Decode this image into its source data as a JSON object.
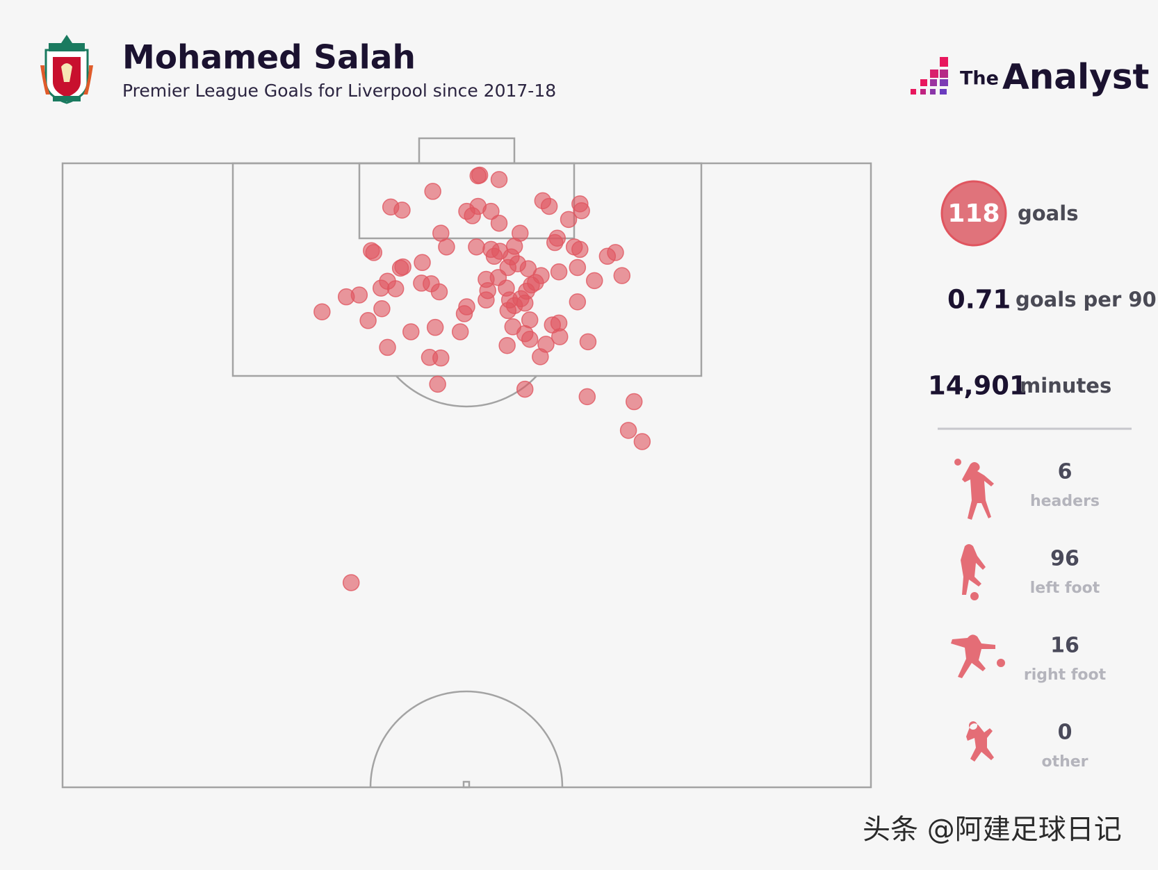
{
  "chart_data": {
    "type": "scatter",
    "title": "Mohamed Salah",
    "subtitle": "Premier League Goals for Liverpool since 2017-18",
    "color": "#e0555f",
    "xlim": [
      0,
      100
    ],
    "ylim": [
      100,
      0
    ],
    "x": [
      51.6,
      51.4,
      54.0,
      45.8,
      40.6,
      42.0,
      50.0,
      51.4,
      50.7,
      53.0,
      54.0,
      59.4,
      60.2,
      64.0,
      64.2,
      62.6,
      46.8,
      56.6,
      47.5,
      51.2,
      53.0,
      54.1,
      55.9,
      61.2,
      60.9,
      63.3,
      64.0,
      38.2,
      38.5,
      44.5,
      41.8,
      42.1,
      53.4,
      55.5,
      56.3,
      55.1,
      57.6,
      59.2,
      61.4,
      63.7,
      67.4,
      68.4,
      69.2,
      65.8,
      52.4,
      53.9,
      54.9,
      52.6,
      58.0,
      58.5,
      57.4,
      40.2,
      39.4,
      41.2,
      44.4,
      45.6,
      46.6,
      35.1,
      36.7,
      32.1,
      39.5,
      37.8,
      50.0,
      49.7,
      52.4,
      55.3,
      56.7,
      55.9,
      57.2,
      55.1,
      63.7,
      57.8,
      55.7,
      60.6,
      61.4,
      43.1,
      46.1,
      49.2,
      57.2,
      57.8,
      61.5,
      59.8,
      55.0,
      65.0,
      40.2,
      45.4,
      46.8,
      59.1,
      46.4,
      57.2,
      64.9,
      70.7,
      70.0,
      71.7,
      35.7
    ],
    "values": [
      1.9,
      2.0,
      2.6,
      4.5,
      7.0,
      7.5,
      7.7,
      6.9,
      8.4,
      7.7,
      9.6,
      6.0,
      6.9,
      6.5,
      7.6,
      9.0,
      11.2,
      11.2,
      13.4,
      13.4,
      13.8,
      14.1,
      13.3,
      12.0,
      12.7,
      13.4,
      13.8,
      14.0,
      14.3,
      15.9,
      16.8,
      16.6,
      14.9,
      15.0,
      16.1,
      16.7,
      16.9,
      18.0,
      17.4,
      16.7,
      14.9,
      14.3,
      18.0,
      18.8,
      18.6,
      18.3,
      20.0,
      20.4,
      19.5,
      19.1,
      20.5,
      18.9,
      20.0,
      20.1,
      19.2,
      19.3,
      20.6,
      21.4,
      21.1,
      23.8,
      23.3,
      25.2,
      23.0,
      24.1,
      21.9,
      21.9,
      21.7,
      22.8,
      22.4,
      23.6,
      22.2,
      25.1,
      26.2,
      25.9,
      25.6,
      27.0,
      26.3,
      27.0,
      27.3,
      28.2,
      27.8,
      29.0,
      29.2,
      28.6,
      29.5,
      31.1,
      31.2,
      31.0,
      35.4,
      36.2,
      37.4,
      38.2,
      42.8,
      44.6,
      67.2
    ]
  },
  "brand": {
    "prefix": "The",
    "name": "Analyst"
  },
  "summary": {
    "goals": 118,
    "goals_label": "goals",
    "per90": 0.71,
    "per90_label": "goals per 90",
    "minutes": "14,901",
    "minutes_label": "minutes"
  },
  "breakdown": [
    {
      "value": 6,
      "label": "headers"
    },
    {
      "value": 96,
      "label": "left foot"
    },
    {
      "value": 16,
      "label": "right foot"
    },
    {
      "value": 0,
      "label": "other"
    }
  ],
  "watermark": "头条 @阿建足球日记"
}
